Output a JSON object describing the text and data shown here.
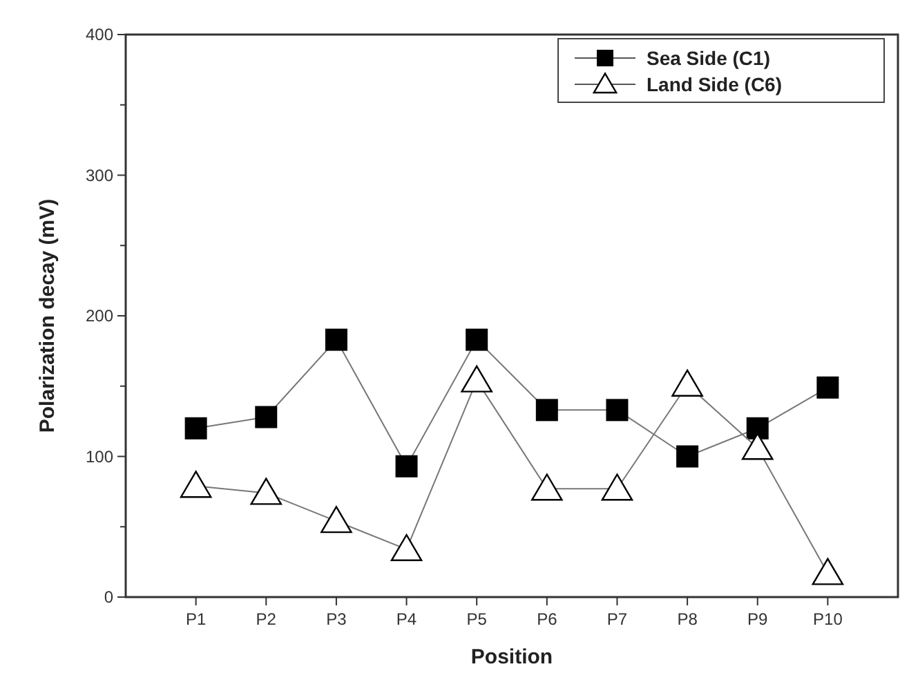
{
  "chart_data": {
    "type": "line",
    "xlabel": "Position",
    "ylabel": "Polarization decay (mV)",
    "categories": [
      "P1",
      "P2",
      "P3",
      "P4",
      "P5",
      "P6",
      "P7",
      "P8",
      "P9",
      "P10"
    ],
    "series": [
      {
        "name": "Sea Side (C1)",
        "color": "#000000",
        "marker": "square",
        "values": [
          120,
          128,
          183,
          93,
          183,
          133,
          133,
          100,
          120,
          149
        ]
      },
      {
        "name": "Land Side (C6)",
        "color": "#000000",
        "marker": "triangle",
        "values": [
          79,
          74,
          54,
          34,
          154,
          77,
          77,
          151,
          106,
          17
        ]
      }
    ],
    "ylim": [
      0,
      400
    ],
    "yticks": [
      0,
      {
        "value": 50,
        "label": null
      },
      100,
      {
        "value": 150,
        "label": null
      },
      200,
      {
        "value": 250,
        "label": null
      },
      300,
      {
        "value": 350,
        "label": null
      },
      400
    ],
    "grid": false,
    "legend": "top right"
  }
}
